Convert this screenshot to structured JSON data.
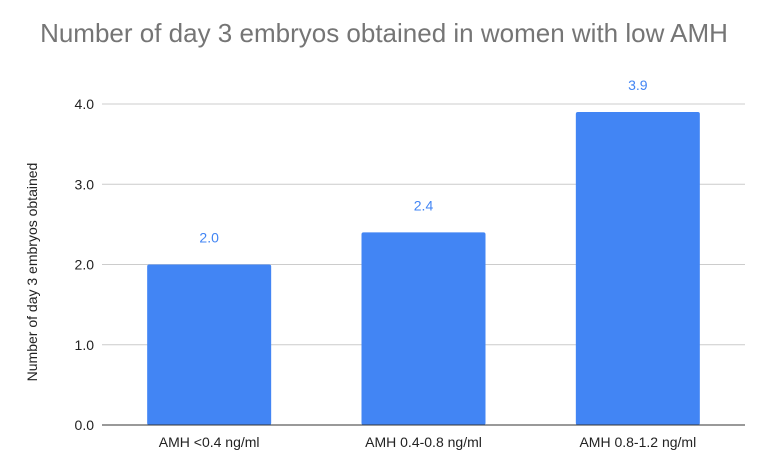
{
  "chart_data": {
    "type": "bar",
    "title": "Number of day 3 embryos obtained in women with low AMH",
    "xlabel": "",
    "ylabel": "Number of day 3 embryos obtained",
    "categories": [
      "AMH <0.4 ng/ml",
      "AMH 0.4-0.8 ng/ml",
      "AMH 0.8-1.2 ng/ml"
    ],
    "values": [
      2.0,
      2.4,
      3.9
    ],
    "data_labels": [
      "2.0",
      "2.4",
      "3.9"
    ],
    "ylim": [
      0,
      4
    ],
    "yticks": [
      "0.0",
      "1.0",
      "2.0",
      "3.0",
      "4.0"
    ],
    "grid": true,
    "legend": "none",
    "bar_color": "#4285f4",
    "label_color": "#4285f4"
  }
}
